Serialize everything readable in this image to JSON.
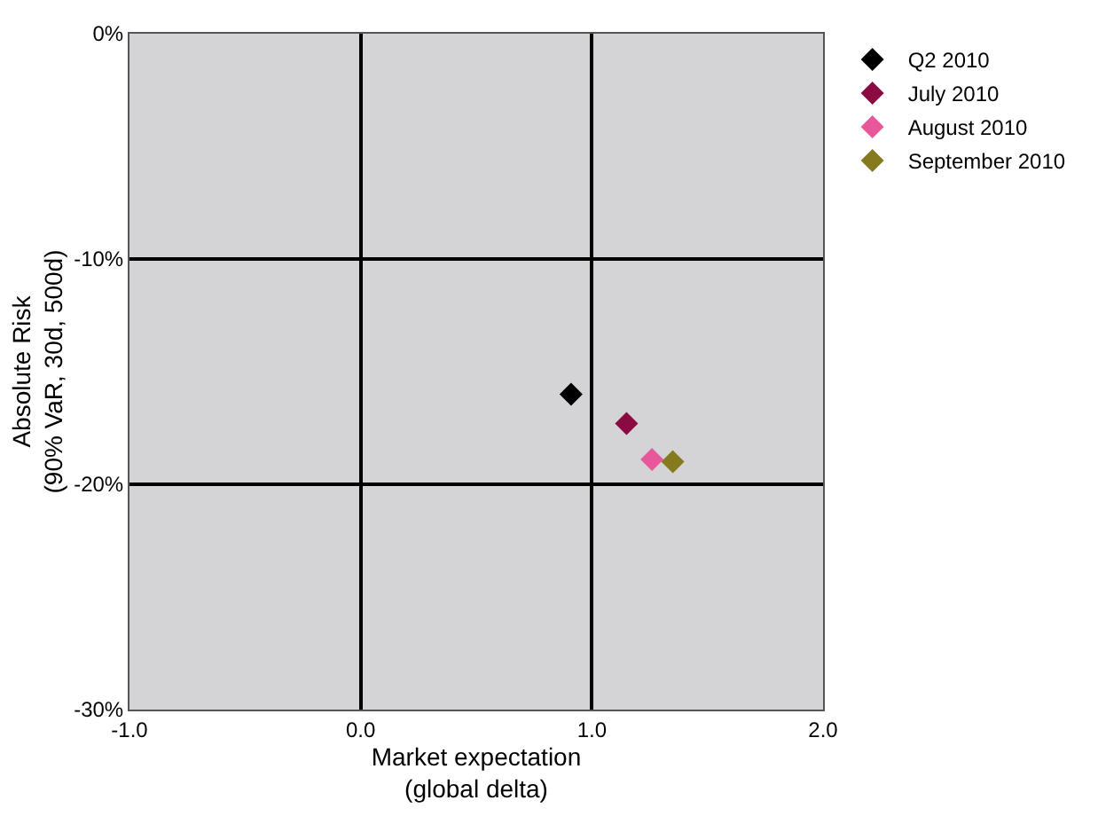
{
  "chart_data": {
    "type": "scatter",
    "xlabel": "Market expectation\n(global delta)",
    "ylabel": "Absolute Risk\n(90% VaR, 30d, 500d)",
    "series": [
      {
        "name": "Q2 2010",
        "color": "#000000",
        "x": [
          0.91
        ],
        "values": [
          -16.0
        ]
      },
      {
        "name": "July 2010",
        "color": "#8b0a42",
        "x": [
          1.15
        ],
        "values": [
          -17.3
        ]
      },
      {
        "name": "August 2010",
        "color": "#e8579a",
        "x": [
          1.26
        ],
        "values": [
          -18.9
        ]
      },
      {
        "name": "September 2010",
        "color": "#857a1e",
        "x": [
          1.35
        ],
        "values": [
          -19.0
        ]
      }
    ],
    "xlim": [
      -1,
      2
    ],
    "xticks": [
      {
        "value": -1,
        "label": "-1.0"
      },
      {
        "value": 0,
        "label": "0.0"
      },
      {
        "value": 1,
        "label": "1.0"
      },
      {
        "value": 2,
        "label": "2.0"
      }
    ],
    "ylim": [
      -30,
      0
    ],
    "yticks": [
      {
        "value": -30,
        "label": "-30%"
      },
      {
        "value": -20,
        "label": "-20%"
      },
      {
        "value": -10,
        "label": "-10%"
      },
      {
        "value": 0,
        "label": "0%"
      }
    ],
    "grid": true,
    "legend": "top right",
    "marker": "diamond"
  }
}
